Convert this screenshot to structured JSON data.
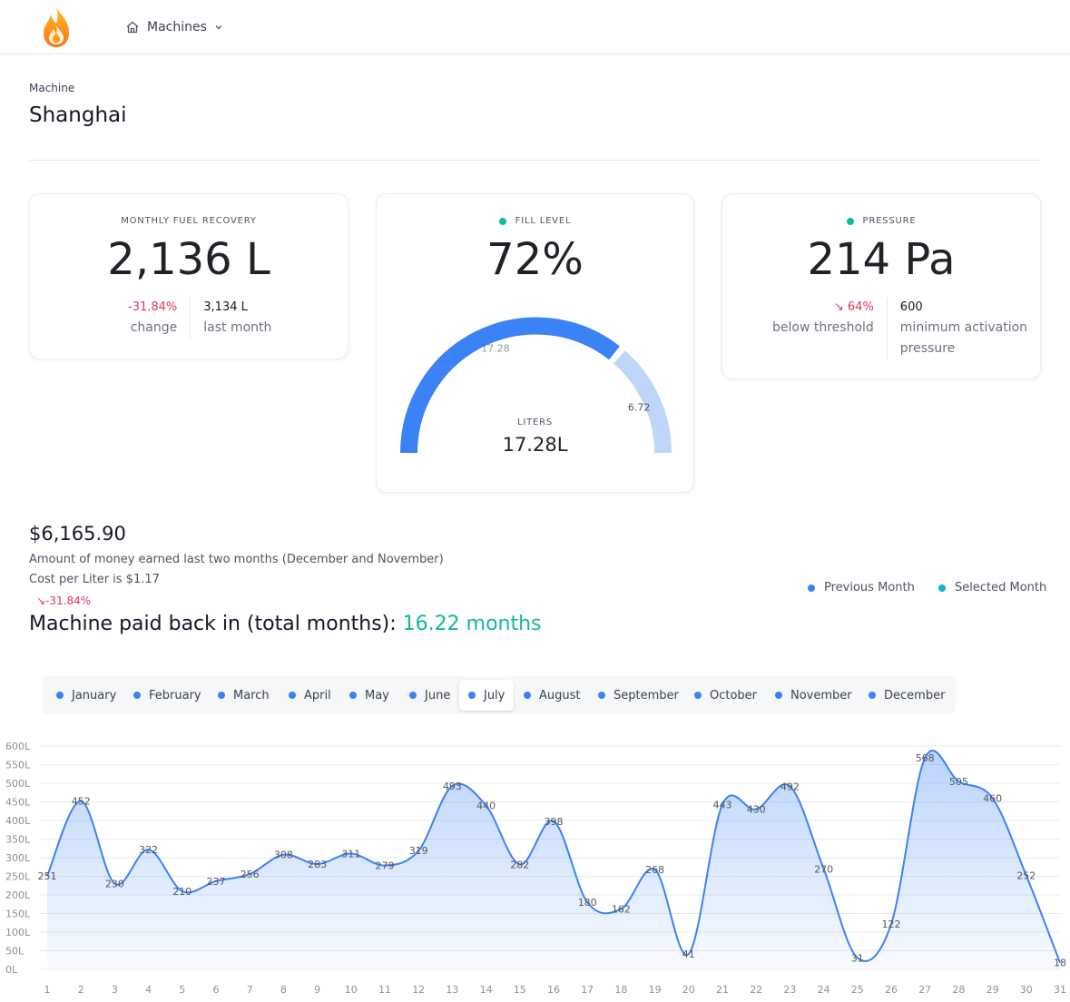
{
  "nav": {
    "label": "Machines",
    "home_icon": "home-icon",
    "chevron_icon": "chevron-down-icon"
  },
  "header": {
    "crumb": "Machine",
    "title": "Shanghai"
  },
  "kpi": {
    "fuel": {
      "label": "MONTHLY FUEL RECOVERY",
      "value": "2,136 L",
      "change": "-31.84%",
      "change_label": "change",
      "last": "3,134 L",
      "last_label": "last month"
    },
    "fill": {
      "label": "FILL LEVEL",
      "value": "72%",
      "gauge_label": "LITERS",
      "gauge_value": "17.28L",
      "filled_text": "17.28",
      "remaining_text": "6.72",
      "filled": 17.28,
      "remaining": 6.72
    },
    "pressure": {
      "label": "PRESSURE",
      "value": "214 Pa",
      "change": "↘ 64%",
      "change_label": "below threshold",
      "min": "600",
      "min_label_1": "minimum activation",
      "min_label_2": "pressure"
    }
  },
  "summary": {
    "amount": "$6,165.90",
    "description": "Amount of money earned last two months (December and November)",
    "cost": "Cost per Liter is $1.17",
    "change": "↘-31.84%",
    "payback_label": "Machine paid back in (total months):",
    "payback_value": "16.22 months"
  },
  "legend": [
    {
      "label": "Previous Month",
      "color": "#3b82f6"
    },
    {
      "label": "Selected Month",
      "color": "#06b6d4"
    }
  ],
  "months": {
    "items": [
      "January",
      "February",
      "March",
      "April",
      "May",
      "June",
      "July",
      "August",
      "September",
      "October",
      "November",
      "December"
    ],
    "selected": "July"
  },
  "colors": {
    "accent": "#3b82f6",
    "teal": "#10b99a",
    "negative": "#e0375a",
    "gauge_rest": "#bfd6fb"
  },
  "chart_data": {
    "type": "area",
    "x": [
      1,
      2,
      3,
      4,
      5,
      6,
      7,
      8,
      9,
      10,
      11,
      12,
      13,
      14,
      15,
      16,
      17,
      18,
      19,
      20,
      21,
      22,
      23,
      24,
      25,
      26,
      27,
      28,
      29,
      30,
      31
    ],
    "y": [
      251,
      452,
      230,
      322,
      210,
      237,
      256,
      308,
      283,
      311,
      279,
      319,
      493,
      440,
      282,
      398,
      180,
      162,
      268,
      41,
      443,
      430,
      492,
      270,
      31,
      122,
      568,
      505,
      460,
      252,
      18
    ],
    "data_labels": [
      "251",
      "452",
      "230",
      "322",
      "210",
      "237",
      "256",
      "308",
      "283",
      "311",
      "279",
      "319",
      "493",
      "440",
      "282",
      "398",
      "180",
      "162",
      "268",
      "41",
      "443",
      "430",
      "492",
      "270",
      "31",
      "122",
      "568",
      "505",
      "460",
      "252",
      "18"
    ],
    "yticks": [
      "0L",
      "50L",
      "100L",
      "150L",
      "200L",
      "250L",
      "300L",
      "350L",
      "400L",
      "450L",
      "500L",
      "550L",
      "600L"
    ],
    "ylim": [
      0,
      600
    ],
    "grid": true
  }
}
